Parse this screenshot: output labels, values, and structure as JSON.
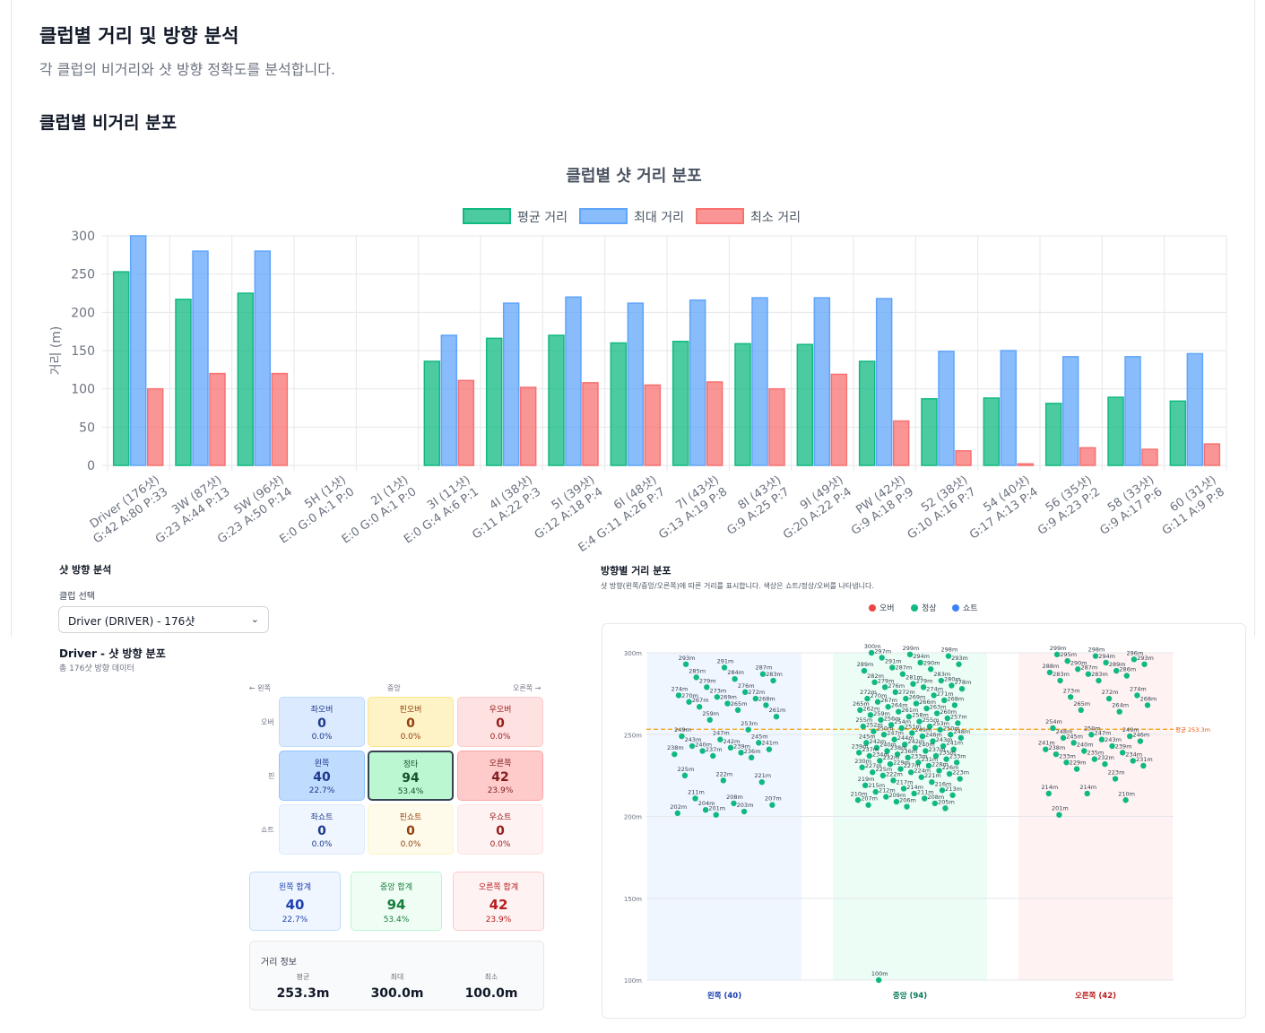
{
  "page": {
    "title": "클럽별 거리 및 방향 분석",
    "subtitle": "각 클럽의 비거리와 샷 방향 정확도를 분석합니다.",
    "section_title": "클럽별 비거리 분포"
  },
  "chart_data": [
    {
      "type": "bar",
      "title": "클럽별 샷 거리 분포",
      "ylabel": "거리 (m)",
      "xlabel": "",
      "ylim": [
        0,
        300
      ],
      "yticks": [
        0,
        50,
        100,
        150,
        200,
        250,
        300
      ],
      "grid": true,
      "legend_position": "top",
      "categories": [
        "Driver (176샷)\nG:42 A:80 P:33",
        "3W (87샷)\nG:23 A:44 P:13",
        "5W (96샷)\nG:23 A:50 P:14",
        "5H (1샷)\nE:0 G:0 A:1 P:0",
        "2I (1샷)\nE:0 G:0 A:1 P:0",
        "3I (11샷)\nE:0 G:4 A:6 P:1",
        "4I (38샷)\nG:11 A:22 P:3",
        "5I (39샷)\nG:12 A:18 P:4",
        "6I (48샷)\nE:4 G:11 A:26 P:7",
        "7I (43샷)\nG:13 A:19 P:8",
        "8I (43샷)\nG:9 A:25 P:7",
        "9I (49샷)\nG:20 A:22 P:4",
        "PW (42샷)\nG:9 A:18 P:9",
        "52 (38샷)\nG:10 A:16 P:7",
        "54 (40샷)\nG:17 A:13 P:4",
        "56 (35샷)\nG:9 A:23 P:2",
        "58 (33샷)\nG:9 A:17 P:6",
        "60 (31샷)\nG:11 A:9 P:8"
      ],
      "series": [
        {
          "name": "평균 거리",
          "color": "#10b981",
          "values": [
            253,
            217,
            225,
            0,
            0,
            136,
            166,
            170,
            160,
            162,
            159,
            158,
            136,
            87,
            88,
            81,
            89,
            84
          ]
        },
        {
          "name": "최대 거리",
          "color": "#60a5fa",
          "values": [
            300,
            280,
            280,
            0,
            0,
            170,
            212,
            220,
            212,
            216,
            219,
            219,
            218,
            149,
            150,
            142,
            142,
            146
          ]
        },
        {
          "name": "최소 거리",
          "color": "#f87171",
          "values": [
            100,
            120,
            120,
            0,
            0,
            111,
            102,
            108,
            105,
            109,
            100,
            119,
            58,
            19,
            2,
            23,
            21,
            28
          ]
        }
      ]
    },
    {
      "type": "scatter",
      "title": "방향별 거리 분포",
      "subtitle": "샷 방향(왼쪽/중앙/오른쪽)에 따른 거리를 표시합니다. 색상은 쇼트/정상/오버를 나타냅니다.",
      "legend": [
        {
          "name": "오버",
          "color": "#ef4444"
        },
        {
          "name": "정상",
          "color": "#10b981"
        },
        {
          "name": "쇼트",
          "color": "#3b82f6"
        }
      ],
      "ylim": [
        100,
        300
      ],
      "yticks": [
        "100m",
        "150m",
        "200m",
        "250m",
        "300m"
      ],
      "average_line": {
        "value": 253.3,
        "label": "평균 253.3m",
        "color": "#f59e0b"
      },
      "columns": [
        {
          "label": "왼쪽 (40)",
          "color": "#1e40af",
          "bg": "#eff6ff"
        },
        {
          "label": "중앙 (94)",
          "color": "#047857",
          "bg": "#ecfdf5"
        },
        {
          "label": "오른쪽 (42)",
          "color": "#b91c1c",
          "bg": "#fef2f2"
        }
      ],
      "points": {
        "left": [
          293,
          291,
          287,
          285,
          284,
          283,
          279,
          276,
          274,
          273,
          272,
          270,
          269,
          268,
          267,
          265,
          261,
          259,
          253,
          249,
          247,
          245,
          243,
          242,
          241,
          240,
          239,
          238,
          237,
          236,
          225,
          222,
          221,
          211,
          208,
          207,
          204,
          203,
          202,
          201
        ],
        "center": [
          300,
          299,
          298,
          297,
          294,
          293,
          291,
          290,
          289,
          287,
          283,
          282,
          281,
          280,
          279,
          279,
          278,
          276,
          274,
          272,
          272,
          271,
          270,
          269,
          268,
          267,
          266,
          265,
          264,
          263,
          262,
          261,
          260,
          259,
          258,
          257,
          256,
          255,
          255,
          254,
          253,
          252,
          251,
          250,
          250,
          249,
          248,
          247,
          246,
          245,
          244,
          243,
          242,
          242,
          241,
          240,
          240,
          239,
          238,
          237,
          237,
          236,
          235,
          234,
          233,
          233,
          232,
          231,
          230,
          229,
          228,
          227,
          227,
          226,
          225,
          224,
          223,
          222,
          221,
          219,
          217,
          216,
          215,
          214,
          213,
          212,
          211,
          210,
          209,
          208,
          207,
          206,
          205,
          100
        ],
        "right": [
          299,
          298,
          296,
          295,
          294,
          293,
          290,
          289,
          288,
          287,
          286,
          283,
          283,
          274,
          273,
          272,
          268,
          265,
          264,
          254,
          250,
          249,
          248,
          247,
          246,
          245,
          243,
          241,
          240,
          239,
          238,
          235,
          234,
          233,
          232,
          231,
          229,
          223,
          214,
          214,
          210,
          201
        ]
      }
    }
  ],
  "direction": {
    "title": "샷 방향 분석",
    "select_label": "클럽 선택",
    "select_value": "Driver (DRIVER) - 176샷",
    "dist_title": "Driver - 샷 방향 분포",
    "dist_sub": "총 176샷 방향 데이터",
    "axis": {
      "left": "← 왼쪽",
      "center": "중앙",
      "right": "오른쪽 →",
      "over": "오버",
      "pin": "핀",
      "short": "쇼트"
    },
    "cells": [
      {
        "name": "좌오버",
        "value": "0",
        "pct": "0.0%"
      },
      {
        "name": "핀오버",
        "value": "0",
        "pct": "0.0%"
      },
      {
        "name": "우오버",
        "value": "0",
        "pct": "0.0%"
      },
      {
        "name": "왼쪽",
        "value": "40",
        "pct": "22.7%"
      },
      {
        "name": "정타",
        "value": "94",
        "pct": "53.4%"
      },
      {
        "name": "오른쪽",
        "value": "42",
        "pct": "23.9%"
      },
      {
        "name": "좌쇼트",
        "value": "0",
        "pct": "0.0%"
      },
      {
        "name": "핀쇼트",
        "value": "0",
        "pct": "0.0%"
      },
      {
        "name": "우쇼트",
        "value": "0",
        "pct": "0.0%"
      }
    ],
    "totals": [
      {
        "name": "왼쪽 합계",
        "value": "40",
        "pct": "22.7%"
      },
      {
        "name": "중앙 합계",
        "value": "94",
        "pct": "53.4%"
      },
      {
        "name": "오른쪽 합계",
        "value": "42",
        "pct": "23.9%"
      }
    ],
    "info": {
      "title": "거리 정보",
      "avg_label": "평균",
      "avg": "253.3m",
      "max_label": "최대",
      "max": "300.0m",
      "min_label": "최소",
      "min": "100.0m"
    }
  }
}
